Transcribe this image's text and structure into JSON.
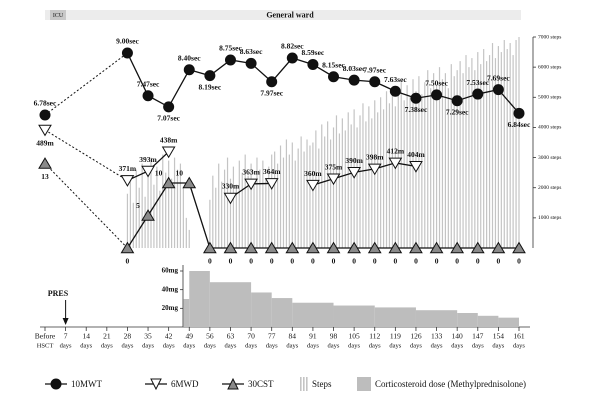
{
  "chart_data": [
    {
      "type": "line",
      "phase_labels": [
        "ICU",
        "General ward"
      ],
      "annotation": {
        "text": "PRES",
        "x": 7
      },
      "xlim": [
        0,
        161
      ],
      "xticks": [
        {
          "value": 0,
          "label": "Before"
        },
        7,
        14,
        21,
        28,
        35,
        42,
        49,
        56,
        63,
        70,
        77,
        84,
        91,
        98,
        105,
        112,
        119,
        126,
        133,
        140,
        147,
        154,
        161
      ],
      "xtick_sublabels": [
        "HSCT",
        "days",
        "days",
        "days",
        "days",
        "days",
        "days",
        "days",
        "days",
        "days",
        "days",
        "days",
        "days",
        "days",
        "days",
        "days",
        "days",
        "days",
        "days",
        "days",
        "days",
        "days",
        "days",
        "days"
      ],
      "y2lim": [
        0,
        7000
      ],
      "y2ticks": [
        {
          "value": 1000,
          "label": "1000 steps"
        },
        {
          "value": 2000,
          "label": "2000 steps"
        },
        {
          "value": 3000,
          "label": "3000 steps"
        },
        {
          "value": 4000,
          "label": "4000 steps"
        },
        {
          "value": 5000,
          "label": "5000 steps"
        },
        {
          "value": 6000,
          "label": "6000 steps"
        },
        {
          "value": 7000,
          "label": "7000 steps"
        }
      ],
      "series": [
        {
          "name": "10MWT",
          "type": "line",
          "marker": "circle",
          "color": "#111111",
          "x": [
            0,
            28,
            35,
            42,
            49,
            56,
            63,
            70,
            77,
            84,
            91,
            98,
            105,
            112,
            119,
            126,
            133,
            140,
            147,
            154,
            161
          ],
          "values": [
            6.78,
            9.0,
            7.47,
            7.07,
            8.4,
            8.19,
            8.75,
            8.63,
            7.97,
            8.82,
            8.59,
            8.15,
            8.03,
            7.97,
            7.63,
            7.38,
            7.5,
            7.29,
            7.53,
            7.69,
            6.84
          ],
          "value_labels": [
            "6.78sec",
            "9.00sec",
            "7.47sec",
            "7.07sec",
            "8.40sec",
            "8.19sec",
            "8.75sec",
            "8.63sec",
            "7.97sec",
            "8.82sec",
            "8.59sec",
            "8.15sec",
            "8.03sec",
            "7.97sec",
            "7.63sec",
            "7.38sec",
            "7.50sec",
            "7.29sec",
            "7.53sec",
            "7.69sec",
            "6.84sec"
          ]
        },
        {
          "name": "6MWD",
          "type": "line",
          "marker": "triangle-down",
          "color": "#ffffff",
          "x": [
            0,
            28,
            35,
            42,
            49,
            56,
            63,
            70,
            77,
            84,
            91,
            98,
            105,
            112,
            119,
            126
          ],
          "values": [
            489,
            371,
            393,
            438,
            null,
            null,
            330,
            363,
            364,
            null,
            360,
            375,
            390,
            398,
            412,
            404
          ],
          "value_labels": [
            "489m",
            "371m",
            "393m",
            "438m",
            null,
            null,
            "330m",
            "363m",
            "364m",
            null,
            "360m",
            "375m",
            "390m",
            "398m",
            "412m",
            "404m"
          ]
        },
        {
          "name": "30CST",
          "type": "line",
          "marker": "triangle-up",
          "color": "#8a8a8a",
          "x": [
            0,
            28,
            35,
            42,
            49,
            56,
            63,
            70,
            77,
            84,
            91,
            98,
            105,
            112,
            119,
            126,
            133,
            140,
            147,
            154,
            161
          ],
          "values": [
            13,
            0,
            5,
            10,
            10,
            0,
            0,
            0,
            0,
            0,
            0,
            0,
            0,
            0,
            0,
            0,
            0,
            0,
            0,
            0,
            0
          ]
        },
        {
          "name": "Steps",
          "type": "bar",
          "axis": "y2",
          "color": "#c4c4c4",
          "x": [
            28,
            29,
            30,
            31,
            32,
            33,
            34,
            35,
            36,
            37,
            38,
            39,
            40,
            41,
            42,
            43,
            44,
            45,
            46,
            47,
            48,
            49,
            56,
            57,
            58,
            59,
            60,
            61,
            62,
            63,
            64,
            65,
            66,
            67,
            68,
            69,
            70,
            71,
            72,
            73,
            74,
            75,
            76,
            77,
            78,
            79,
            80,
            81,
            82,
            83,
            84,
            85,
            86,
            87,
            88,
            89,
            90,
            91,
            92,
            93,
            94,
            95,
            96,
            97,
            98,
            99,
            100,
            101,
            102,
            103,
            104,
            105,
            106,
            107,
            108,
            109,
            110,
            111,
            112,
            113,
            114,
            115,
            116,
            117,
            118,
            119,
            120,
            121,
            122,
            123,
            124,
            125,
            126,
            127,
            128,
            129,
            130,
            131,
            132,
            133,
            134,
            135,
            136,
            137,
            138,
            139,
            140,
            141,
            142,
            143,
            144,
            145,
            146,
            147,
            148,
            149,
            150,
            151,
            152,
            153,
            154,
            155,
            156,
            157,
            158,
            159,
            160,
            161
          ],
          "values": [
            1800,
            2200,
            1500,
            2600,
            2000,
            2800,
            1700,
            2400,
            3000,
            2100,
            2700,
            1900,
            3100,
            2500,
            2900,
            2300,
            3000,
            2600,
            2800,
            2000,
            1000,
            600,
            1600,
            2400,
            2000,
            2800,
            2200,
            2600,
            3000,
            2300,
            2700,
            2100,
            2900,
            2500,
            3100,
            2400,
            2800,
            2200,
            3000,
            2600,
            2900,
            2300,
            2700,
            3100,
            3200,
            2800,
            3400,
            3000,
            3600,
            3100,
            3500,
            2900,
            3300,
            3700,
            3200,
            3600,
            3400,
            3500,
            3900,
            3300,
            4100,
            3700,
            4200,
            3600,
            4000,
            4400,
            3800,
            4300,
            3900,
            4500,
            4100,
            4600,
            4000,
            4400,
            4800,
            4200,
            4700,
            4300,
            4900,
            4500,
            5000,
            4600,
            5200,
            4800,
            5300,
            4700,
            5100,
            5500,
            4900,
            5400,
            5000,
            5600,
            5200,
            5700,
            5100,
            5500,
            5900,
            5300,
            5800,
            5400,
            6000,
            5600,
            5800,
            5300,
            6100,
            5700,
            5900,
            6200,
            5800,
            6400,
            6000,
            6300,
            5900,
            6500,
            6100,
            6600,
            6200,
            6400,
            6800,
            6300,
            6700,
            6500,
            6900,
            6600,
            6800,
            6400,
            6900,
            7000
          ]
        }
      ]
    },
    {
      "type": "bar",
      "ylim": [
        0,
        65
      ],
      "yticks": [
        {
          "value": 20,
          "label": "20mg"
        },
        {
          "value": 40,
          "label": "40mg"
        },
        {
          "value": 60,
          "label": "60mg"
        }
      ],
      "series": [
        {
          "name": "Corticosteroid dose (Methylprednisolone)",
          "color": "#bdbdbd",
          "bins": [
            47,
            49,
            56,
            70,
            77,
            84,
            98,
            112,
            126,
            140,
            147,
            154,
            161
          ],
          "values": [
            30,
            60,
            48,
            37,
            31,
            26,
            23,
            21,
            18,
            15,
            12,
            10
          ]
        }
      ]
    }
  ]
}
